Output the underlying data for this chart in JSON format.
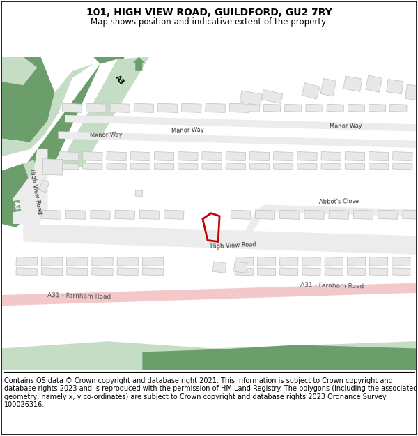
{
  "title": "101, HIGH VIEW ROAD, GUILDFORD, GU2 7RY",
  "subtitle": "Map shows position and indicative extent of the property.",
  "footer": "Contains OS data © Crown copyright and database right 2021. This information is subject to Crown copyright and database rights 2023 and is reproduced with the permission of HM Land Registry. The polygons (including the associated geometry, namely x, y co-ordinates) are subject to Crown copyright and database rights 2023 Ordnance Survey 100026316.",
  "bg_color": "#ffffff",
  "map_bg": "#ffffff",
  "green_dark": "#6b9e6b",
  "green_light": "#c5ddc5",
  "pink_road": "#f2c8c8",
  "building_fc": "#e8e8e8",
  "building_ec": "#c0c0c0",
  "road_fc": "#f0f0f0",
  "red_plot": "#cc0000",
  "title_fontsize": 10,
  "subtitle_fontsize": 8.5,
  "footer_fontsize": 7.0,
  "label_fontsize": 6.0
}
